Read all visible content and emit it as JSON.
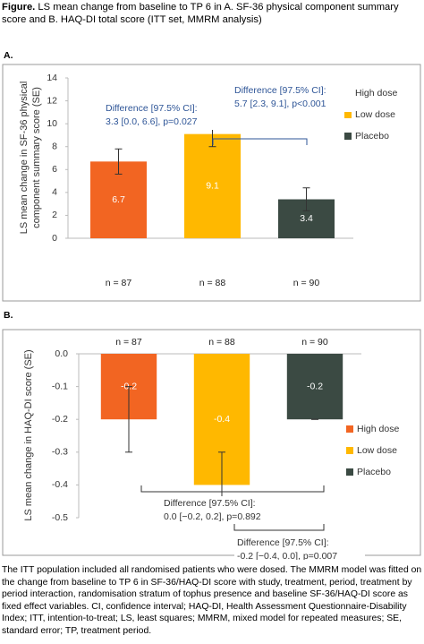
{
  "figure_label": "Figure.",
  "title": "LS mean change from baseline to TP 6 in A. SF-36 physical component summary score and B. HAQ-DI total score (ITT set, MMRM analysis)",
  "chart_data": [
    {
      "type": "bar",
      "label": "A.",
      "ylabel": [
        "LS mean change in SF-36 physical",
        "component summary score (SE)"
      ],
      "categories": [
        "High dose",
        "Low dose",
        "Placebo"
      ],
      "colors": [
        "#f26522",
        "#ffb800",
        "#3b4a43"
      ],
      "values": [
        6.7,
        9.1,
        3.4
      ],
      "errors": [
        1.1,
        1.1,
        1.0
      ],
      "n_labels": [
        "n = 87",
        "n = 88",
        "n = 90"
      ],
      "ylim": [
        0,
        14
      ],
      "yticks": [
        0,
        2,
        4,
        6,
        8,
        10,
        12,
        14
      ],
      "legend": "right",
      "annotations": [
        {
          "lines": [
            "Difference [97.5% CI]:",
            "3.3 [0.0, 6.6], p=0.027"
          ],
          "color": "#2e5597"
        },
        {
          "lines": [
            "Difference [97.5% CI]:",
            "5.7 [2.3, 9.1], p<0.001"
          ],
          "color": "#2e5597"
        }
      ]
    },
    {
      "type": "bar",
      "label": "B.",
      "ylabel": [
        "LS mean change in HAQ-DI score (SE)"
      ],
      "categories": [
        "High dose",
        "Low dose",
        "Placebo"
      ],
      "colors": [
        "#f26522",
        "#ffb800",
        "#3b4a43"
      ],
      "values": [
        -0.2,
        -0.4,
        -0.2
      ],
      "errors": [
        0.1,
        0.1,
        0
      ],
      "n_labels": [
        "n = 87",
        "n = 88",
        "n = 90"
      ],
      "ylim": [
        -0.5,
        0
      ],
      "yticks": [
        {
          "value": 0,
          "label": "0.0"
        },
        -0.1,
        -0.2,
        -0.3,
        -0.4,
        -0.5
      ],
      "legend": "right",
      "annotations": [
        {
          "lines": [
            "Difference [97.5% CI]:",
            "0.0 [−0.2, 0.2], p=0.892"
          ],
          "color": "#333333"
        },
        {
          "lines": [
            "Difference [97.5% CI]:",
            "-0.2 [−0.4, 0.0], p=0.007"
          ],
          "color": "#333333"
        }
      ]
    }
  ],
  "footnote": "The ITT population included all randomised patients who were dosed. The MMRM model was fitted on the change from baseline to TP 6 in SF-36/HAQ-DI score with study, treatment, period, treatment by period interaction, randomisation stratum of tophus presence and baseline SF-36/HAQ-DI score as fixed effect variables. CI, confidence interval; HAQ-DI, Health Assessment Questionnaire-Disability Index; ITT, intention-to-treat; LS, least squares; MMRM, mixed model for repeated measures; SE, standard error; TP, treatment period."
}
